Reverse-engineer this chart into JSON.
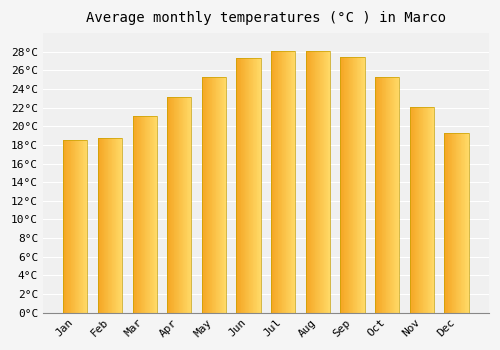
{
  "title": "Average monthly temperatures (°C ) in Marco",
  "months": [
    "Jan",
    "Feb",
    "Mar",
    "Apr",
    "May",
    "Jun",
    "Jul",
    "Aug",
    "Sep",
    "Oct",
    "Nov",
    "Dec"
  ],
  "values": [
    18.5,
    18.8,
    21.1,
    23.1,
    25.3,
    27.3,
    28.1,
    28.1,
    27.5,
    25.3,
    22.1,
    19.3
  ],
  "bar_color_left": "#F5A623",
  "bar_color_right": "#FFD966",
  "bar_color_mid": "#FFC125",
  "bar_edge_color": "#C8A000",
  "ylim": [
    0,
    30
  ],
  "yticks": [
    0,
    2,
    4,
    6,
    8,
    10,
    12,
    14,
    16,
    18,
    20,
    22,
    24,
    26,
    28
  ],
  "background_color": "#f5f5f5",
  "plot_bg_color": "#f0f0f0",
  "grid_color": "#ffffff",
  "title_fontsize": 10,
  "tick_fontsize": 8,
  "font_family": "monospace"
}
